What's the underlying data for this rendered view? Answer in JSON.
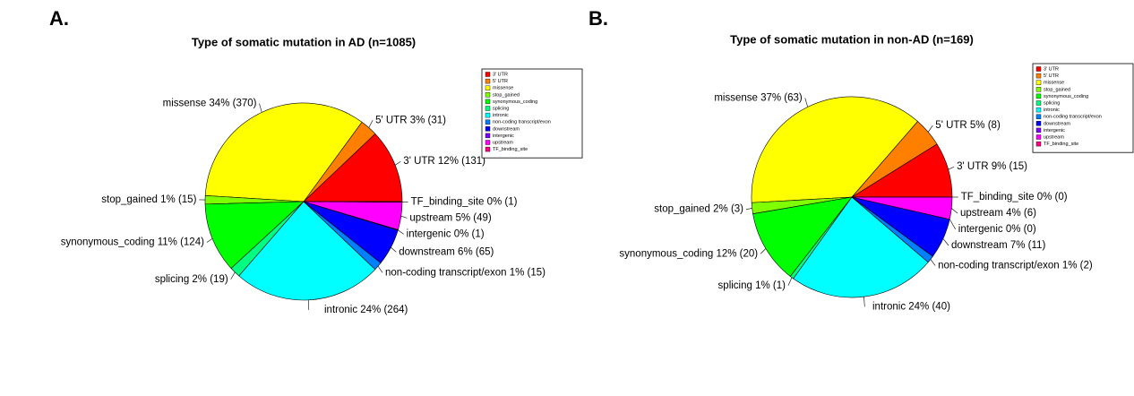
{
  "chart_data": [
    {
      "type": "pie",
      "panel": "A.",
      "title": "Type of somatic mutation in AD (n=1085)",
      "categories": [
        "3' UTR",
        "5' UTR",
        "missense",
        "stop_gained",
        "synonymous_coding",
        "splicing",
        "intronic",
        "non-coding transcript/exon",
        "downstream",
        "intergenic",
        "upstream",
        "TF_binding_site"
      ],
      "values": [
        131,
        31,
        370,
        15,
        124,
        19,
        264,
        15,
        65,
        1,
        49,
        1
      ],
      "value_labels": [
        "3' UTR 12%  (131)",
        "5' UTR 3%  (31)",
        "missense 34%  (370)",
        "stop_gained 1%  (15)",
        "synonymous_coding 11%  (124)",
        "splicing 2%  (19)",
        "intronic 24%  (264)",
        "non-coding transcript/exon 1%  (15)",
        "downstream 6%  (65)",
        "intergenic 0%  (1)",
        "upstream 5%  (49)",
        "TF_binding_site 0%  (1)"
      ],
      "colors": [
        "#ff0000",
        "#ff8000",
        "#ffff00",
        "#80ff00",
        "#00ff00",
        "#00ff80",
        "#00ffff",
        "#0080ff",
        "#0000ff",
        "#8000ff",
        "#ff00ff",
        "#ff0080"
      ]
    },
    {
      "type": "pie",
      "panel": "B.",
      "title": "Type of somatic mutation in non-AD (n=169)",
      "categories": [
        "3' UTR",
        "5' UTR",
        "missense",
        "stop_gained",
        "synonymous_coding",
        "splicing",
        "intronic",
        "non-coding transcript/exon",
        "downstream",
        "intergenic",
        "upstream",
        "TF_binding_site"
      ],
      "values": [
        15,
        8,
        63,
        3,
        20,
        1,
        40,
        2,
        11,
        0,
        6,
        0
      ],
      "value_labels": [
        "3' UTR 9%  (15)",
        "5' UTR 5%  (8)",
        "missense 37%  (63)",
        "stop_gained 2%  (3)",
        "synonymous_coding 12%  (20)",
        "splicing 1%  (1)",
        "intronic 24%  (40)",
        "non-coding transcript/exon 1%  (2)",
        "downstream 7%  (11)",
        "intergenic 0%  (0)",
        "upstream 4%  (6)",
        "TF_binding_site 0%  (0)"
      ],
      "colors": [
        "#ff0000",
        "#ff8000",
        "#ffff00",
        "#80ff00",
        "#00ff00",
        "#00ff80",
        "#00ffff",
        "#0080ff",
        "#0000ff",
        "#8000ff",
        "#ff00ff",
        "#ff0080"
      ]
    }
  ]
}
